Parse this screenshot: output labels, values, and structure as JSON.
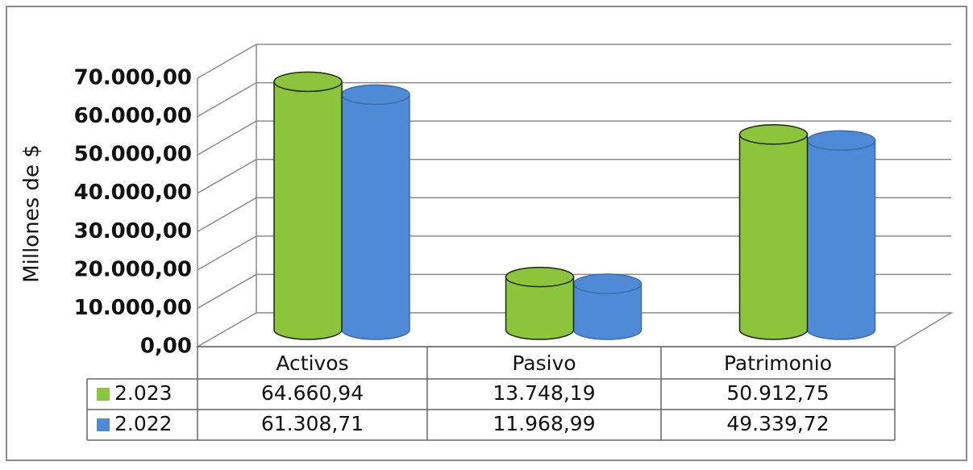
{
  "chart_data": {
    "type": "bar3d",
    "y_axis_label": "Millones de $",
    "categories": [
      "Activos",
      "Pasivo",
      "Patrimonio"
    ],
    "series": [
      {
        "name": "2.023",
        "color": "#8cc43c",
        "values": [
          64660.94,
          13748.19,
          50912.75
        ],
        "value_labels": [
          "64.660,94",
          "13.748,19",
          "50.912,75"
        ]
      },
      {
        "name": "2.022",
        "color": "#4f8ad6",
        "values": [
          61308.71,
          11968.99,
          49339.72
        ],
        "value_labels": [
          "61.308,71",
          "11.968,99",
          "49.339,72"
        ]
      }
    ],
    "ylim": [
      0,
      70000
    ],
    "yticks": [
      {
        "value": 0,
        "label": "0,00"
      },
      {
        "value": 10000,
        "label": "10.000,00"
      },
      {
        "value": 20000,
        "label": "20.000,00"
      },
      {
        "value": 30000,
        "label": "30.000,00"
      },
      {
        "value": 40000,
        "label": "40.000,00"
      },
      {
        "value": 50000,
        "label": "50.000,00"
      },
      {
        "value": 60000,
        "label": "60.000,00"
      },
      {
        "value": 70000,
        "label": "70.000,00"
      }
    ],
    "grid": true
  }
}
